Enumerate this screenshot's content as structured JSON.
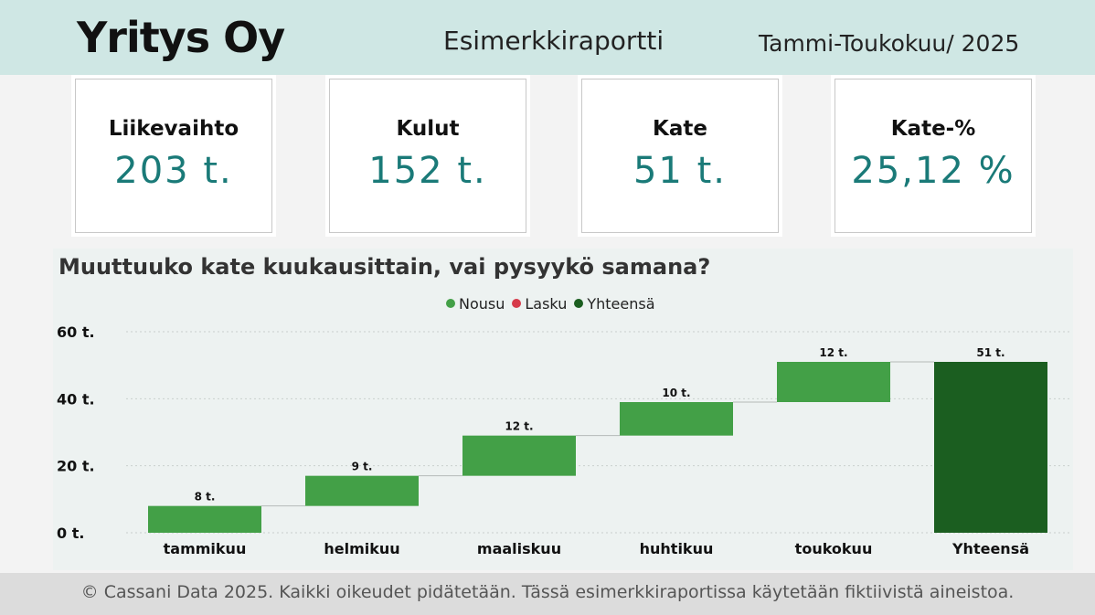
{
  "header": {
    "company": "Yritys Oy",
    "report_title": "Esimerkkiraportti",
    "period": "Tammi-Toukokuu/ 2025"
  },
  "kpis": [
    {
      "label": "Liikevaihto",
      "value": "203 t."
    },
    {
      "label": "Kulut",
      "value": "152 t."
    },
    {
      "label": "Kate",
      "value": "51 t."
    },
    {
      "label": "Kate-%",
      "value": "25,12 %"
    }
  ],
  "legend": [
    {
      "label": "Nousu",
      "color": "#43a047"
    },
    {
      "label": "Lasku",
      "color": "#d63a4a"
    },
    {
      "label": "Yhteensä",
      "color": "#1b5e20"
    }
  ],
  "chart_data": {
    "type": "waterfall",
    "title": "Muuttuuko kate kuukausittain, vai pysyykö samana?",
    "categories": [
      "tammikuu",
      "helmikuu",
      "maaliskuu",
      "huhtikuu",
      "toukokuu",
      "Yhteensä"
    ],
    "values": [
      8,
      9,
      12,
      10,
      12,
      51
    ],
    "data_labels": [
      "8 t.",
      "9 t.",
      "12 t.",
      "10 t.",
      "12 t.",
      "51 t."
    ],
    "kinds": [
      "increase",
      "increase",
      "increase",
      "increase",
      "increase",
      "total"
    ],
    "y_ticks": [
      {
        "value": 0,
        "label": "0 t."
      },
      {
        "value": 20,
        "label": "20 t."
      },
      {
        "value": 40,
        "label": "40 t."
      },
      {
        "value": 60,
        "label": "60 t."
      }
    ],
    "ylim": [
      0,
      60
    ],
    "grid": true,
    "legend_position": "top-center",
    "colors": {
      "increase": "#43a047",
      "decrease": "#d63a4a",
      "total": "#1b5e20"
    }
  },
  "footer": {
    "text": "© Cassani Data 2025. Kaikki oikeudet pidätetään. Tässä esimerkkiraportissa käytetään fiktiivistä aineistoa."
  }
}
